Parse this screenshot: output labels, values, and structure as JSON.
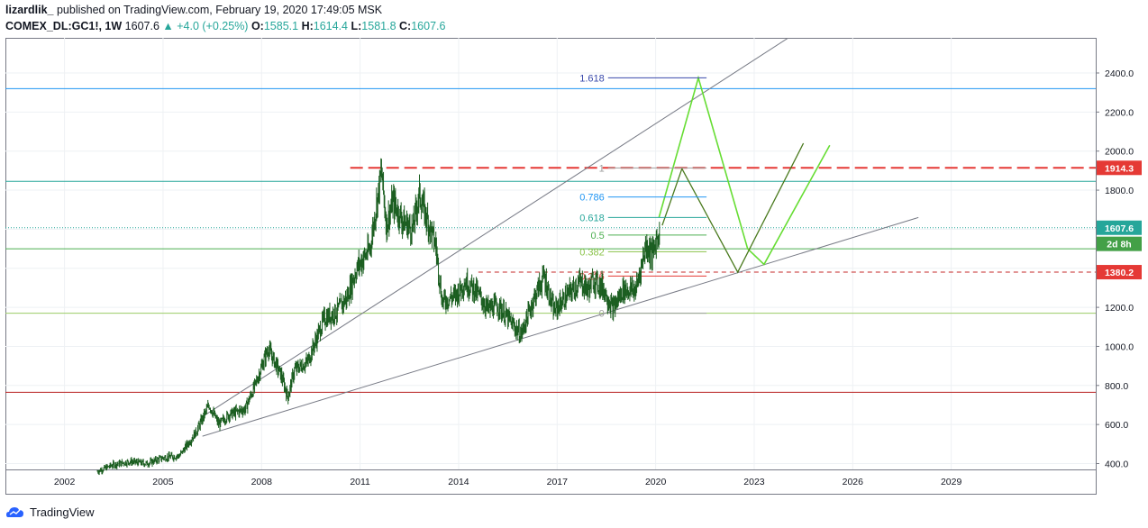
{
  "header": {
    "author": "lizardlik_",
    "published_text": " published on TradingView.com, February 19, 2020 17:49:05 MSK",
    "symbol": "COMEX_DL:GC1!, 1W",
    "last": "1607.6",
    "change": "+4.0 (+0.25%)",
    "open_label": "O:",
    "open": "1585.1",
    "high_label": "H:",
    "high": "1614.4",
    "low_label": "L:",
    "low": "1581.8",
    "close_label": "C:",
    "close": "1607.6"
  },
  "footer": {
    "brand": "TradingView"
  },
  "colors": {
    "up": "#26a69a",
    "candle": "#1b5e20",
    "price_label": "#26a69a",
    "red": "#e53935",
    "green_label": "#43a047",
    "grid": "#eef1f4",
    "axis_text": "#131722"
  },
  "chart_data": {
    "type": "line",
    "title": "COMEX_DL:GC1!, 1W",
    "x_ticks": [
      "2002",
      "2005",
      "2008",
      "2011",
      "2014",
      "2017",
      "2020",
      "2023",
      "2026",
      "2029"
    ],
    "y_ticks": [
      "400.0",
      "600.0",
      "800.0",
      "1000.0",
      "1200.0",
      "1400.0",
      "1600.0",
      "1800.0",
      "2000.0",
      "2200.0",
      "2400.0"
    ],
    "xlim": [
      2000.2,
      2033.4
    ],
    "ylim": [
      370,
      2580
    ],
    "series": [
      {
        "values": [
          [
            2003.0,
            360
          ],
          [
            2003.5,
            395
          ],
          [
            2004.0,
            410
          ],
          [
            2004.5,
            400
          ],
          [
            2005.0,
            430
          ],
          [
            2005.5,
            440
          ],
          [
            2006.0,
            560
          ],
          [
            2006.4,
            700
          ],
          [
            2006.7,
            600
          ],
          [
            2007.0,
            650
          ],
          [
            2007.5,
            680
          ],
          [
            2007.8,
            800
          ],
          [
            2008.2,
            990
          ],
          [
            2008.6,
            850
          ],
          [
            2008.8,
            740
          ],
          [
            2009.0,
            880
          ],
          [
            2009.4,
            920
          ],
          [
            2009.9,
            1140
          ],
          [
            2010.3,
            1180
          ],
          [
            2010.6,
            1250
          ],
          [
            2010.9,
            1400
          ],
          [
            2011.3,
            1500
          ],
          [
            2011.65,
            1900
          ],
          [
            2011.8,
            1620
          ],
          [
            2012.0,
            1740
          ],
          [
            2012.3,
            1640
          ],
          [
            2012.6,
            1600
          ],
          [
            2012.8,
            1780
          ],
          [
            2013.0,
            1670
          ],
          [
            2013.3,
            1520
          ],
          [
            2013.5,
            1230
          ],
          [
            2013.9,
            1260
          ],
          [
            2014.2,
            1330
          ],
          [
            2014.5,
            1290
          ],
          [
            2014.9,
            1190
          ],
          [
            2015.2,
            1210
          ],
          [
            2015.6,
            1120
          ],
          [
            2015.9,
            1060
          ],
          [
            2016.3,
            1250
          ],
          [
            2016.6,
            1360
          ],
          [
            2016.9,
            1180
          ],
          [
            2017.3,
            1260
          ],
          [
            2017.7,
            1330
          ],
          [
            2017.95,
            1290
          ],
          [
            2018.1,
            1340
          ],
          [
            2018.4,
            1300
          ],
          [
            2018.7,
            1190
          ],
          [
            2019.0,
            1290
          ],
          [
            2019.4,
            1290
          ],
          [
            2019.7,
            1520
          ],
          [
            2019.9,
            1470
          ],
          [
            2020.13,
            1607.6
          ]
        ]
      }
    ],
    "horizontal_levels": [
      {
        "y": 2320,
        "color": "#2196f3"
      },
      {
        "y": 1914.3,
        "color": "#e53935",
        "style": "dashed",
        "label": "1914.3"
      },
      {
        "y": 1845,
        "color": "#26a69a"
      },
      {
        "y": 1607.6,
        "color": "#26a69a",
        "style": "dotted",
        "label": "1607.6"
      },
      {
        "y": 1500,
        "color": "#4caf50",
        "label": "2d 8h"
      },
      {
        "y": 1380.2,
        "color": "#c62828",
        "style": "dashed",
        "label": "1380.2"
      },
      {
        "y": 1170,
        "color": "#9ccc65"
      },
      {
        "y": 765,
        "color": "#b71c1c"
      }
    ],
    "fibonacci": [
      {
        "level": "0",
        "price": 1170,
        "color": "#9e9e9e"
      },
      {
        "level": "0.236",
        "price": 1360,
        "color": "#e53935"
      },
      {
        "level": "0.382",
        "price": 1485,
        "color": "#8bc34a"
      },
      {
        "level": "0.5",
        "price": 1570,
        "color": "#4caf50"
      },
      {
        "level": "0.618",
        "price": 1660,
        "color": "#26a69a"
      },
      {
        "level": "0.786",
        "price": 1765,
        "color": "#2196f3"
      },
      {
        "level": "1",
        "price": 1914,
        "color": "#9e9e9e"
      },
      {
        "level": "1.618",
        "price": 2375,
        "color": "#3949ab"
      }
    ],
    "grid": true
  }
}
